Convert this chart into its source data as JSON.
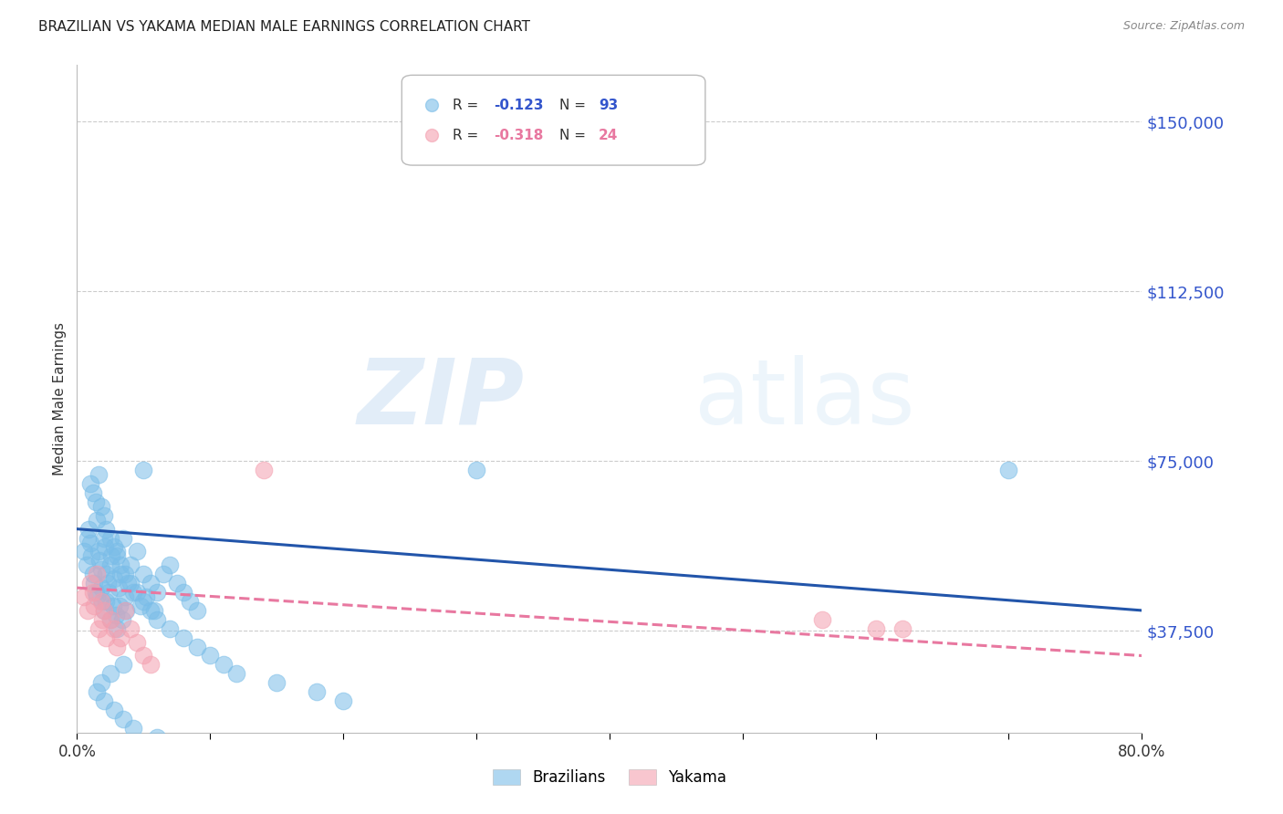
{
  "title": "BRAZILIAN VS YAKAMA MEDIAN MALE EARNINGS CORRELATION CHART",
  "source": "Source: ZipAtlas.com",
  "ylabel": "Median Male Earnings",
  "ytick_labels": [
    "$37,500",
    "$75,000",
    "$112,500",
    "$150,000"
  ],
  "ytick_values": [
    37500,
    75000,
    112500,
    150000
  ],
  "ymin": 15000,
  "ymax": 162500,
  "xmin": 0.0,
  "xmax": 0.8,
  "watermark_zip": "ZIP",
  "watermark_atlas": "atlas",
  "legend_blue_R": "-0.123",
  "legend_blue_N": "93",
  "legend_pink_R": "-0.318",
  "legend_pink_N": "24",
  "blue_color": "#7abde8",
  "pink_color": "#f4a0b0",
  "line_blue": "#2255aa",
  "line_pink": "#e878a0",
  "title_color": "#222222",
  "ytick_color": "#3355cc",
  "grid_color": "#cccccc",
  "blue_scatter_x": [
    0.005,
    0.007,
    0.008,
    0.009,
    0.01,
    0.011,
    0.012,
    0.013,
    0.014,
    0.015,
    0.015,
    0.016,
    0.017,
    0.018,
    0.018,
    0.019,
    0.02,
    0.02,
    0.021,
    0.022,
    0.022,
    0.023,
    0.024,
    0.025,
    0.025,
    0.026,
    0.027,
    0.028,
    0.029,
    0.03,
    0.03,
    0.031,
    0.032,
    0.033,
    0.034,
    0.035,
    0.036,
    0.037,
    0.038,
    0.04,
    0.042,
    0.045,
    0.048,
    0.05,
    0.052,
    0.055,
    0.058,
    0.06,
    0.065,
    0.07,
    0.075,
    0.08,
    0.085,
    0.09,
    0.01,
    0.012,
    0.014,
    0.016,
    0.018,
    0.02,
    0.022,
    0.025,
    0.028,
    0.03,
    0.033,
    0.036,
    0.04,
    0.045,
    0.05,
    0.055,
    0.06,
    0.07,
    0.08,
    0.09,
    0.1,
    0.11,
    0.12,
    0.15,
    0.18,
    0.2,
    0.05,
    0.3,
    0.7,
    0.035,
    0.025,
    0.018,
    0.015,
    0.02,
    0.028,
    0.035,
    0.042,
    0.06,
    0.075
  ],
  "blue_scatter_y": [
    55000,
    52000,
    58000,
    60000,
    57000,
    54000,
    50000,
    48000,
    46000,
    45000,
    62000,
    55000,
    53000,
    51000,
    47000,
    44000,
    58000,
    42000,
    56000,
    50000,
    44000,
    48000,
    46000,
    52000,
    40000,
    54000,
    43000,
    49000,
    41000,
    55000,
    38000,
    47000,
    43000,
    50000,
    40000,
    58000,
    45000,
    42000,
    48000,
    52000,
    46000,
    55000,
    43000,
    50000,
    45000,
    48000,
    42000,
    46000,
    50000,
    52000,
    48000,
    46000,
    44000,
    42000,
    70000,
    68000,
    66000,
    72000,
    65000,
    63000,
    60000,
    58000,
    56000,
    54000,
    52000,
    50000,
    48000,
    46000,
    44000,
    42000,
    40000,
    38000,
    36000,
    34000,
    32000,
    30000,
    28000,
    26000,
    24000,
    22000,
    73000,
    73000,
    73000,
    30000,
    28000,
    26000,
    24000,
    22000,
    20000,
    18000,
    16000,
    14000,
    12000
  ],
  "pink_scatter_x": [
    0.005,
    0.008,
    0.01,
    0.012,
    0.013,
    0.015,
    0.016,
    0.018,
    0.019,
    0.02,
    0.022,
    0.025,
    0.028,
    0.03,
    0.033,
    0.036,
    0.04,
    0.045,
    0.05,
    0.055,
    0.14,
    0.56,
    0.6,
    0.62
  ],
  "pink_scatter_y": [
    45000,
    42000,
    48000,
    46000,
    43000,
    50000,
    38000,
    44000,
    40000,
    42000,
    36000,
    40000,
    38000,
    34000,
    36000,
    42000,
    38000,
    35000,
    32000,
    30000,
    73000,
    40000,
    38000,
    38000
  ],
  "blue_trendline_x": [
    0.0,
    0.8
  ],
  "blue_trendline_y": [
    60000,
    42000
  ],
  "pink_trendline_x": [
    0.0,
    0.8
  ],
  "pink_trendline_y": [
    47000,
    32000
  ],
  "xtick_positions": [
    0.0,
    0.1,
    0.2,
    0.3,
    0.4,
    0.5,
    0.6,
    0.7,
    0.8
  ],
  "bottom_legend_labels": [
    "Brazilians",
    "Yakama"
  ]
}
